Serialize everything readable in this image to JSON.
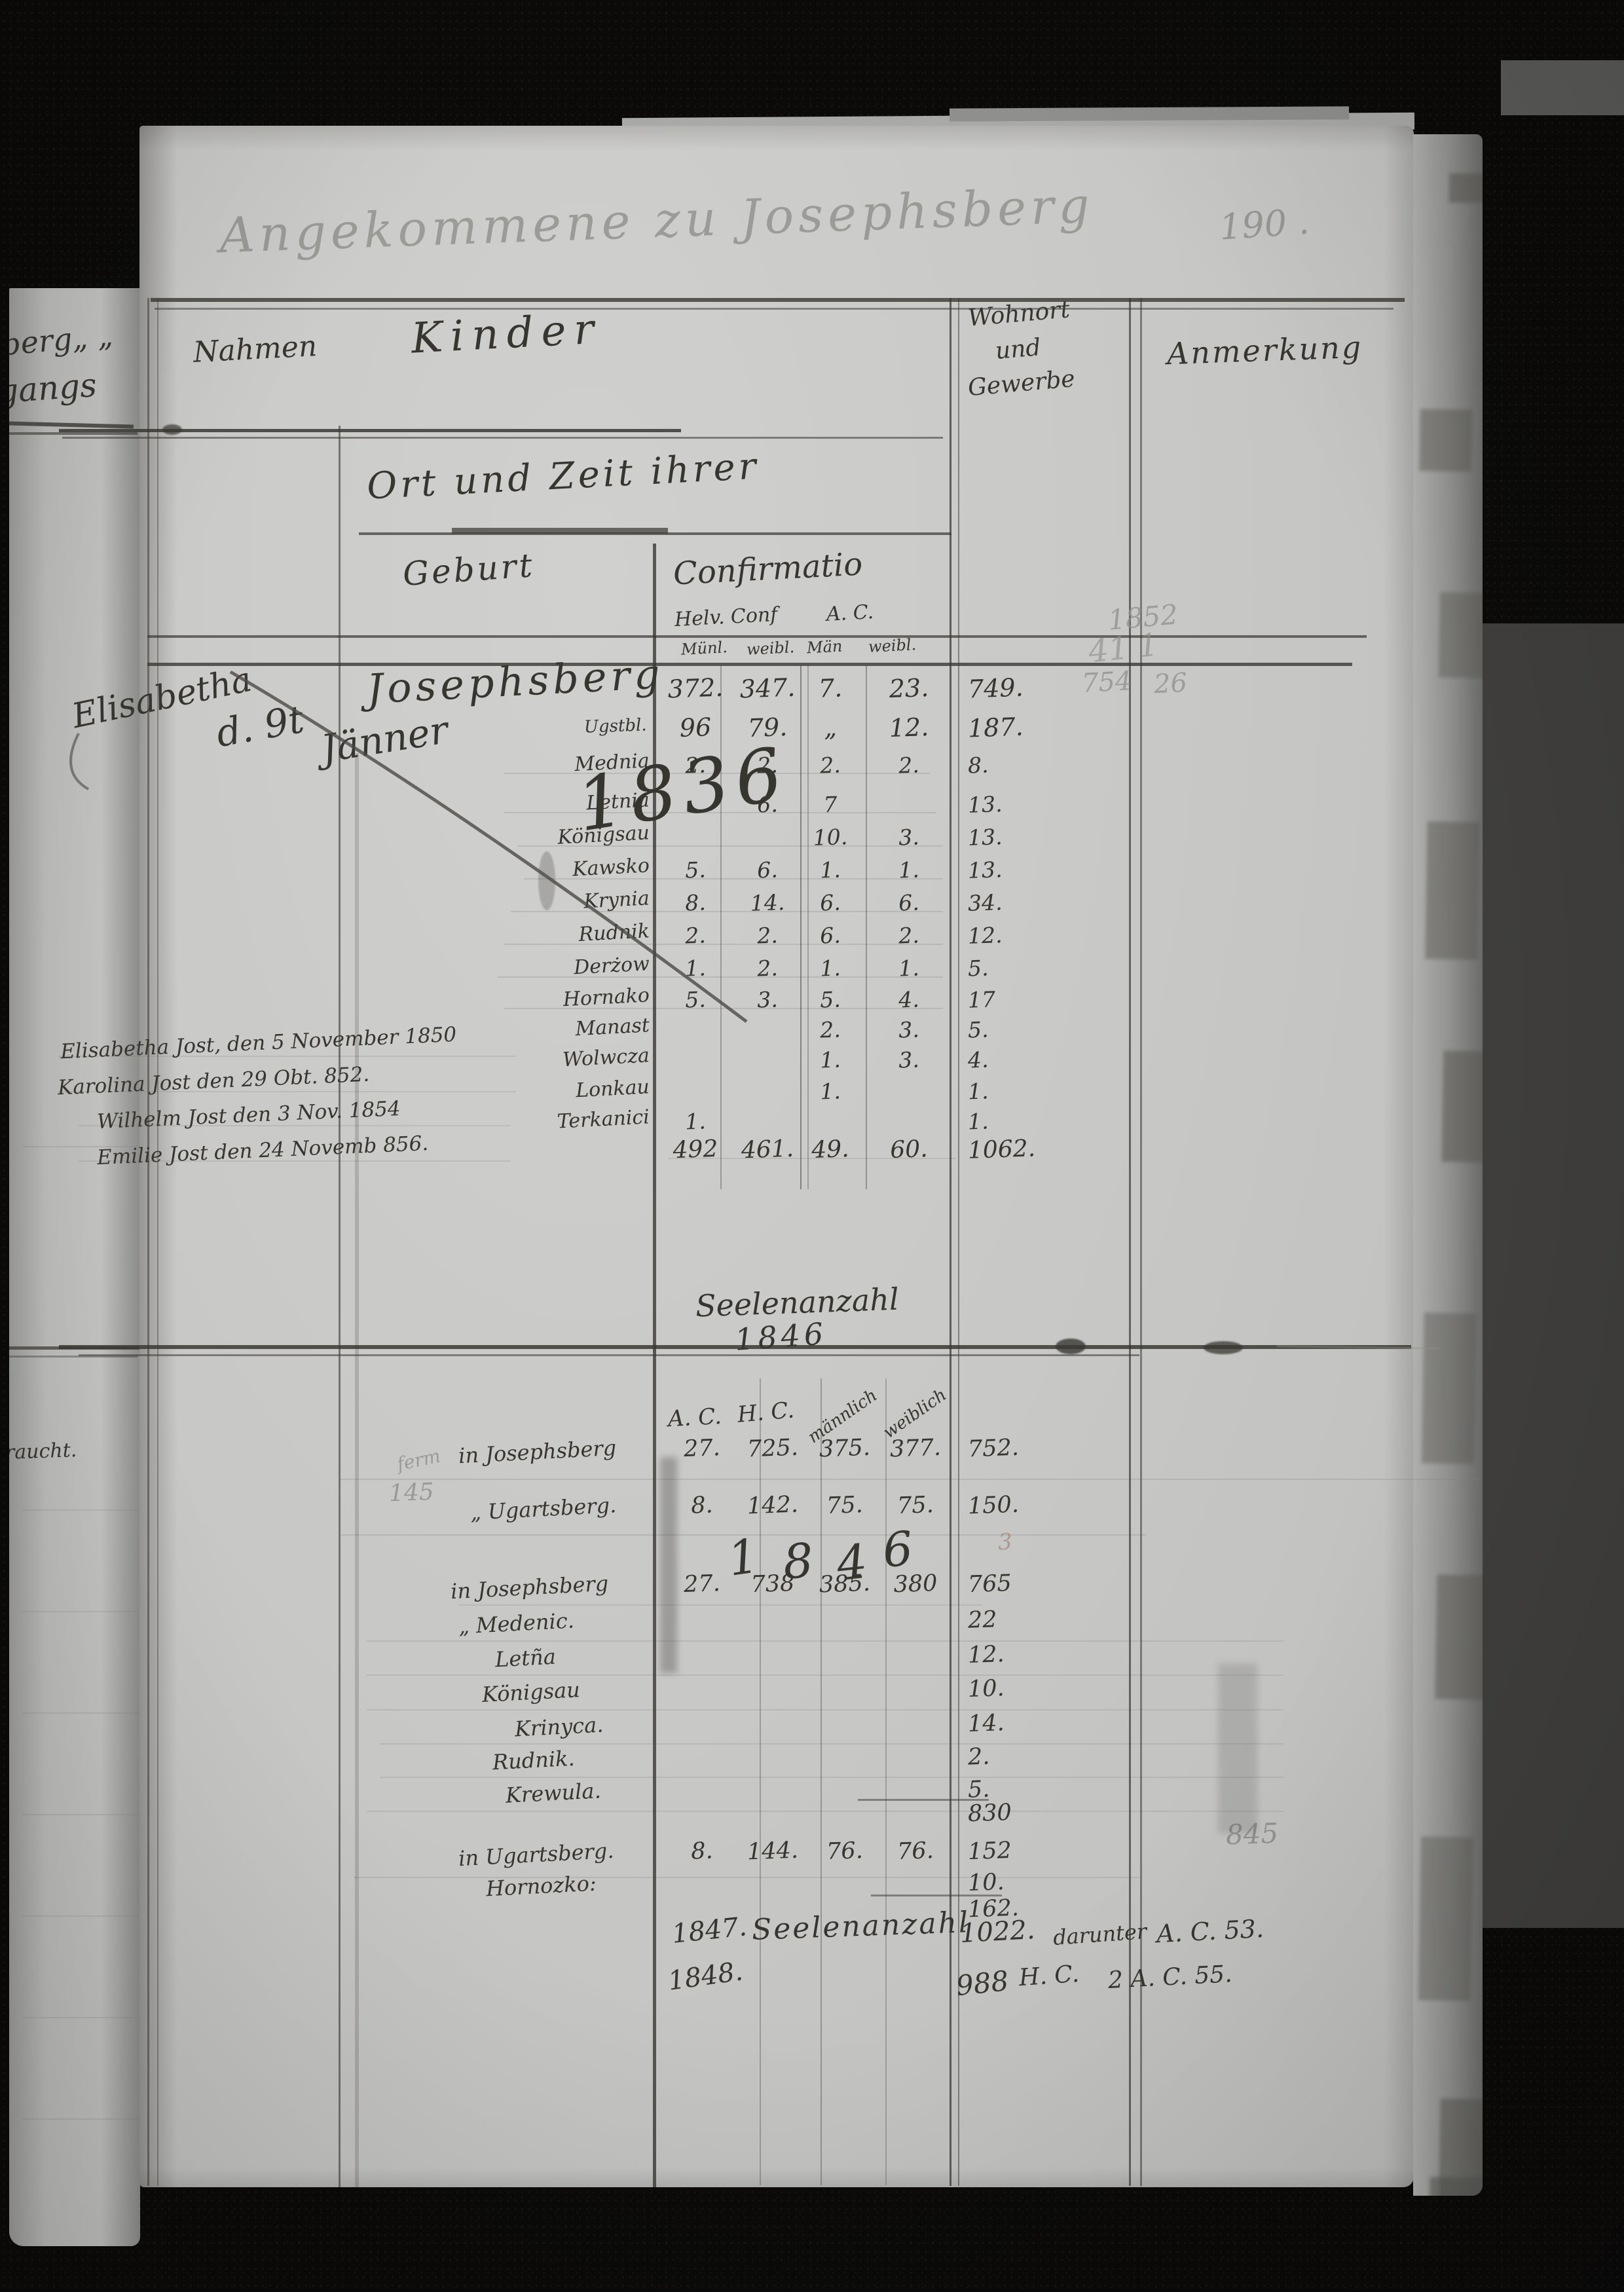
{
  "page": {
    "header_script": "Angekommene zu Josephsberg",
    "page_number": "190 .",
    "prev_page_fragments": {
      "f1": "berg„  „",
      "f2": "gangs",
      "f3": "raucht."
    },
    "pencil": {
      "n1852": "1852",
      "n41": "41 1",
      "n754": "754",
      "n26": "26",
      "ferm": "ferm",
      "n145": "145",
      "n845": "845",
      "n3": "3"
    }
  },
  "table1": {
    "col_names": "Nahmen",
    "col_children": "Kinder",
    "col_residence_l1": "Wohnort",
    "col_residence_l2": "und",
    "col_residence_l3": "Gewerbe",
    "col_remark": "Anmerkung",
    "section_title": "Ort und Zeit ihrer",
    "sub_birth": "Geburt",
    "sub_conf": "Confirmatio",
    "grp_helv": "Helv. Conf",
    "grp_ac": "A. C.",
    "subcols": [
      "Münl.",
      "weibl.",
      "Män",
      "weibl."
    ],
    "script": {
      "name": "Elisabetha",
      "d": "d. 9t",
      "month": "Jänner",
      "year": "1836",
      "row2_label": "Ugstbl."
    },
    "rows": [
      {
        "label": "Josephsberg",
        "big": true,
        "v": [
          "372.",
          "347.",
          "7.",
          "23."
        ],
        "total": "749."
      },
      {
        "label": "",
        "v": [
          "96",
          "79.",
          "„",
          "12."
        ],
        "total": "187."
      },
      {
        "label": "Mednia",
        "v": [
          "2.",
          "2.",
          "2.",
          "2."
        ],
        "total": "8."
      },
      {
        "label": "Letnia",
        "v": [
          "",
          "6.",
          "7",
          ""
        ],
        "total": "13."
      },
      {
        "label": "Königsau",
        "v": [
          "",
          "",
          "10.",
          "3."
        ],
        "total": "13."
      },
      {
        "label": "Kawsko",
        "v": [
          "5.",
          "6.",
          "1.",
          "1."
        ],
        "total": "13."
      },
      {
        "label": "Krynia",
        "v": [
          "8.",
          "14.",
          "6.",
          "6."
        ],
        "total": "34."
      },
      {
        "label": "Rudnik",
        "v": [
          "2.",
          "2.",
          "6.",
          "2."
        ],
        "total": "12."
      },
      {
        "label": "Derżow",
        "v": [
          "1.",
          "2.",
          "1.",
          "1."
        ],
        "total": "5."
      },
      {
        "label": "Hornako",
        "v": [
          "5.",
          "3.",
          "5.",
          "4."
        ],
        "total": "17"
      },
      {
        "label": "Manast",
        "v": [
          "",
          "",
          "2.",
          "3."
        ],
        "total": "5."
      },
      {
        "label": "Wolwcza",
        "v": [
          "",
          "",
          "1.",
          "3."
        ],
        "total": "4."
      },
      {
        "label": "Lonkau",
        "v": [
          "",
          "",
          "1.",
          ""
        ],
        "total": "1."
      },
      {
        "label": "Terkanici",
        "v": [
          "1.",
          "",
          "",
          ""
        ],
        "total": "1."
      },
      {
        "label": "",
        "v": [
          "492",
          "461.",
          "49.",
          "60."
        ],
        "total": "1062."
      }
    ],
    "margin_entries": [
      "Elisabetha Jost, den 5 November 1850",
      "Karolina Jost den 29 Obt. 852.",
      "Wilhelm Jost den 3 Nov. 1854",
      "Emilie Jost den 24 Novemb 856."
    ]
  },
  "table2": {
    "title": "Seelenanzahl",
    "title_year": "1846",
    "headers": [
      "A. C.",
      "H. C.",
      "männlich",
      "weiblich"
    ],
    "big_year": [
      "1",
      "8",
      "4",
      "6"
    ],
    "rows": [
      {
        "label": "in Josephsberg",
        "v": [
          "27.",
          "725.",
          "375.",
          "377."
        ],
        "total": "752."
      },
      {
        "label": "„ Ugartsberg.",
        "v": [
          "8.",
          "142.",
          "75.",
          "75."
        ],
        "total": "150."
      },
      {
        "label": "in Josephsberg",
        "v": [
          "27.",
          "738",
          "385.",
          "380"
        ],
        "total": "765"
      },
      {
        "label": "„ Medenic.",
        "v": [
          "",
          "",
          "",
          ""
        ],
        "total": "22"
      },
      {
        "label": "Letña",
        "v": [
          "",
          "",
          "",
          ""
        ],
        "total": "12."
      },
      {
        "label": "Königsau",
        "v": [
          "",
          "",
          "",
          ""
        ],
        "total": "10."
      },
      {
        "label": "Krinyca.",
        "v": [
          "",
          "",
          "",
          ""
        ],
        "total": "14."
      },
      {
        "label": "Rudnik.",
        "v": [
          "",
          "",
          "",
          ""
        ],
        "total": "2."
      },
      {
        "label": "Krewula.",
        "v": [
          "",
          "",
          "",
          ""
        ],
        "total": "5."
      },
      {
        "label": "",
        "v": [
          "",
          "",
          "",
          ""
        ],
        "total": "830"
      },
      {
        "label": "in Ugartsberg.",
        "v": [
          "8.",
          "144.",
          "76.",
          "76."
        ],
        "total": "152"
      },
      {
        "label": "Hornozko:",
        "v": [
          "",
          "",
          "",
          ""
        ],
        "total": "10."
      },
      {
        "label": "",
        "v": [
          "",
          "",
          "",
          ""
        ],
        "total": "162."
      }
    ],
    "summary": [
      {
        "year": "1847.",
        "label": "Seelenanzahl",
        "total": "1022.",
        "note1": "darunter",
        "note2": "A. C. 53."
      },
      {
        "year": "1848.",
        "label": "",
        "total": "988",
        "note1": "H. C.",
        "note2": "2 A. C. 55."
      }
    ]
  }
}
